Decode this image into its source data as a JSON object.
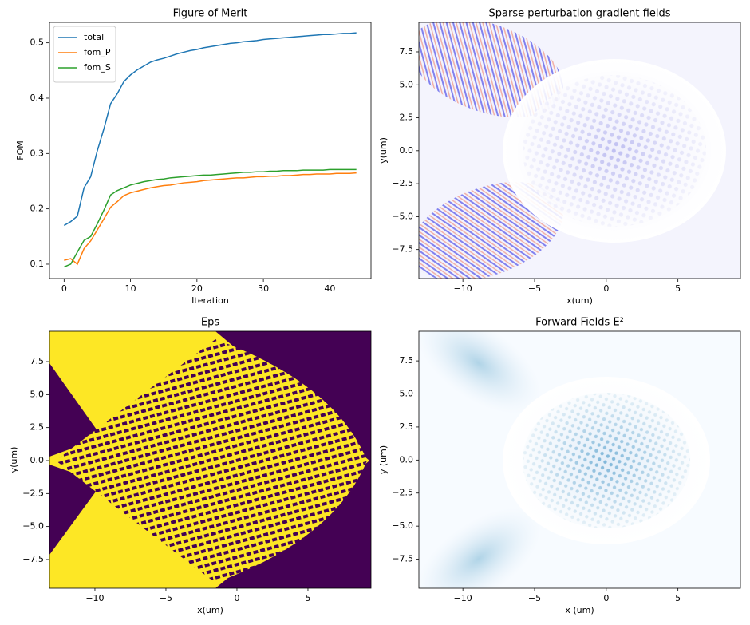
{
  "chart_data": [
    {
      "type": "line",
      "title": "Figure of Merit",
      "xlabel": "Iteration",
      "ylabel": "FOM",
      "x": [
        0,
        1,
        2,
        3,
        4,
        5,
        6,
        7,
        8,
        9,
        10,
        11,
        12,
        13,
        14,
        15,
        16,
        17,
        18,
        19,
        20,
        21,
        22,
        23,
        24,
        25,
        26,
        27,
        28,
        29,
        30,
        31,
        32,
        33,
        34,
        35,
        36,
        37,
        38,
        39,
        40,
        41,
        42,
        43,
        44
      ],
      "series": [
        {
          "name": "total",
          "color": "#1f77b4",
          "values": [
            0.17,
            0.177,
            0.187,
            0.238,
            0.258,
            0.305,
            0.345,
            0.39,
            0.408,
            0.43,
            0.442,
            0.451,
            0.458,
            0.465,
            0.469,
            0.472,
            0.476,
            0.48,
            0.483,
            0.486,
            0.488,
            0.491,
            0.493,
            0.495,
            0.497,
            0.499,
            0.5,
            0.502,
            0.503,
            0.504,
            0.506,
            0.507,
            0.508,
            0.509,
            0.51,
            0.511,
            0.512,
            0.513,
            0.514,
            0.515,
            0.515,
            0.516,
            0.517,
            0.517,
            0.518
          ]
        },
        {
          "name": "fom_P",
          "color": "#ff7f0e",
          "values": [
            0.107,
            0.11,
            0.1,
            0.128,
            0.142,
            0.162,
            0.182,
            0.203,
            0.213,
            0.224,
            0.229,
            0.232,
            0.235,
            0.238,
            0.24,
            0.242,
            0.243,
            0.245,
            0.247,
            0.248,
            0.249,
            0.251,
            0.252,
            0.253,
            0.254,
            0.255,
            0.256,
            0.256,
            0.257,
            0.258,
            0.258,
            0.259,
            0.259,
            0.26,
            0.26,
            0.261,
            0.262,
            0.262,
            0.263,
            0.263,
            0.263,
            0.264,
            0.264,
            0.264,
            0.265
          ]
        },
        {
          "name": "fom_S",
          "color": "#2ca02c",
          "values": [
            0.095,
            0.1,
            0.122,
            0.143,
            0.15,
            0.173,
            0.198,
            0.225,
            0.233,
            0.238,
            0.243,
            0.246,
            0.249,
            0.251,
            0.253,
            0.254,
            0.256,
            0.257,
            0.258,
            0.259,
            0.26,
            0.261,
            0.261,
            0.262,
            0.263,
            0.264,
            0.265,
            0.266,
            0.266,
            0.267,
            0.267,
            0.268,
            0.268,
            0.269,
            0.269,
            0.269,
            0.27,
            0.27,
            0.27,
            0.27,
            0.271,
            0.271,
            0.271,
            0.271,
            0.271
          ]
        }
      ],
      "xlim": [
        -2.2,
        46.2
      ],
      "ylim": [
        0.074,
        0.537
      ],
      "xticks": [
        0,
        10,
        20,
        30,
        40
      ],
      "yticks": [
        0.1,
        0.2,
        0.3,
        0.4,
        0.5
      ],
      "legend": "upper left"
    },
    {
      "type": "image",
      "title": "Sparse perturbation gradient fields",
      "xlabel": "x(um)",
      "ylabel": "y(um)",
      "xlim": [
        -13.07,
        9.36
      ],
      "ylim": [
        -9.7,
        9.74
      ],
      "xticks": [
        {
          "value": -10,
          "label": "−10"
        },
        {
          "value": -5,
          "label": "−5"
        },
        0,
        5
      ],
      "yticks": [
        {
          "value": -7.5,
          "label": "−7.5"
        },
        {
          "value": -5,
          "label": "−5.0"
        },
        {
          "value": -2.5,
          "label": "−2.5"
        },
        {
          "value": 0,
          "label": "0.0"
        },
        2.5,
        {
          "value": 5,
          "label": "5.0"
        },
        7.5
      ]
    },
    {
      "type": "image",
      "title": "Eps",
      "xlabel": "x(um)",
      "ylabel": "y(um)",
      "xlim": [
        -13.2,
        9.44
      ],
      "ylim": [
        -9.68,
        9.8
      ],
      "xticks": [
        {
          "value": -10,
          "label": "−10"
        },
        {
          "value": -5,
          "label": "−5"
        },
        0,
        5
      ],
      "yticks": [
        {
          "value": -7.5,
          "label": "−7.5"
        },
        {
          "value": -5,
          "label": "−5.0"
        },
        {
          "value": -2.5,
          "label": "−2.5"
        },
        {
          "value": 0,
          "label": "0.0"
        },
        2.5,
        {
          "value": 5,
          "label": "5.0"
        },
        7.5
      ]
    },
    {
      "type": "image",
      "title": "Forward Fields E²",
      "xlabel": "x (um)",
      "ylabel": "y (um)",
      "xlim": [
        -13.07,
        9.36
      ],
      "ylim": [
        -9.7,
        9.74
      ],
      "xticks": [
        {
          "value": -10,
          "label": "−10"
        },
        {
          "value": -5,
          "label": "−5"
        },
        0,
        5
      ],
      "yticks": [
        {
          "value": -7.5,
          "label": "−7.5"
        },
        {
          "value": -5,
          "label": "−5.0"
        },
        {
          "value": -2.5,
          "label": "−2.5"
        },
        {
          "value": 0,
          "label": "0.0"
        },
        2.5,
        {
          "value": 5,
          "label": "5.0"
        },
        7.5
      ]
    }
  ]
}
